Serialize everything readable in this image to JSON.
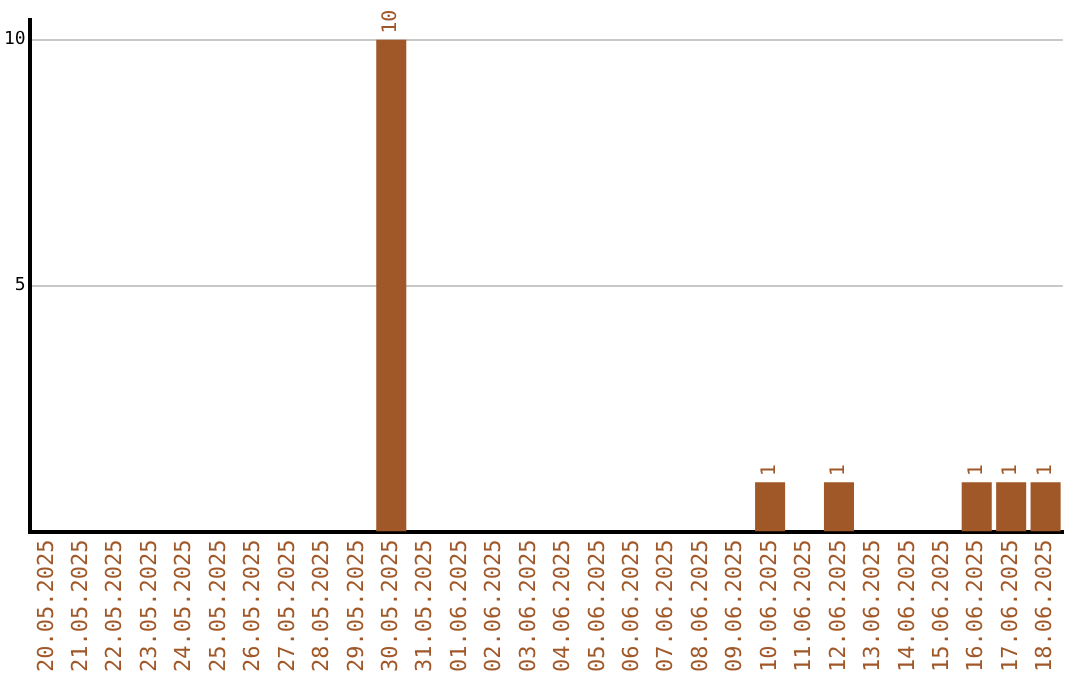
{
  "chart_data": {
    "type": "bar",
    "categories": [
      "20.05.2025",
      "21.05.2025",
      "22.05.2025",
      "23.05.2025",
      "24.05.2025",
      "25.05.2025",
      "26.05.2025",
      "27.05.2025",
      "28.05.2025",
      "29.05.2025",
      "30.05.2025",
      "31.05.2025",
      "01.06.2025",
      "02.06.2025",
      "03.06.2025",
      "04.06.2025",
      "05.06.2025",
      "06.06.2025",
      "07.06.2025",
      "08.06.2025",
      "09.06.2025",
      "10.06.2025",
      "11.06.2025",
      "12.06.2025",
      "13.06.2025",
      "14.06.2025",
      "15.06.2025",
      "16.06.2025",
      "17.06.2025",
      "18.06.2025"
    ],
    "values": [
      0,
      0,
      0,
      0,
      0,
      0,
      0,
      0,
      0,
      0,
      10,
      0,
      0,
      0,
      0,
      0,
      0,
      0,
      0,
      0,
      0,
      1,
      0,
      1,
      0,
      0,
      0,
      1,
      1,
      1
    ],
    "value_labels": [
      null,
      null,
      null,
      null,
      null,
      null,
      null,
      null,
      null,
      null,
      "10",
      null,
      null,
      null,
      null,
      null,
      null,
      null,
      null,
      null,
      null,
      "1",
      null,
      "1",
      null,
      null,
      null,
      "1",
      "1",
      "1"
    ],
    "color": "#a15829",
    "ylim": [
      0,
      10.4
    ],
    "yticks": [
      5,
      10
    ],
    "grid": "y",
    "legend": false
  }
}
